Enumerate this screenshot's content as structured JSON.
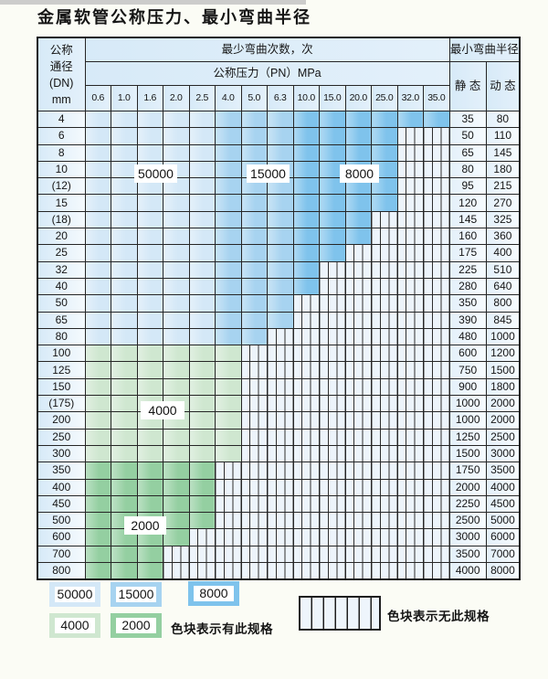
{
  "title": "金属软管公称压力、最小弯曲半径",
  "colors": {
    "50000": "#d4e8f7",
    "15000": "#a7d3f0",
    "8000": "#7fc3ec",
    "4000": "#cfe7d0",
    "2000": "#94cfa1"
  },
  "table": {
    "dn_header_lines": [
      "公称",
      "通径",
      "(DN)",
      "mm"
    ],
    "cycles_header": "最少弯曲次数，次",
    "pressure_header": "公称压力（PN）MPa",
    "radius_header": "最小弯曲半径",
    "static_label": "静 态",
    "dynamic_label": "动 态",
    "pressure_columns": [
      "0.6",
      "1.0",
      "1.6",
      "2.0",
      "2.5",
      "4.0",
      "5.0",
      "6.3",
      "10.0",
      "15.0",
      "20.0",
      "25.0",
      "32.0",
      "35.0"
    ],
    "rows": [
      {
        "dn": "4",
        "fill": [
          [
            "50000",
            5
          ],
          [
            "15000",
            3
          ],
          [
            "8000",
            6
          ]
        ],
        "static": "35",
        "dynamic": "80"
      },
      {
        "dn": "6",
        "fill": [
          [
            "50000",
            5
          ],
          [
            "15000",
            3
          ],
          [
            "8000",
            4
          ]
        ],
        "static": "50",
        "dynamic": "110"
      },
      {
        "dn": "8",
        "fill": [
          [
            "50000",
            5
          ],
          [
            "15000",
            3
          ],
          [
            "8000",
            4
          ]
        ],
        "static": "65",
        "dynamic": "145"
      },
      {
        "dn": "10",
        "fill": [
          [
            "50000",
            5
          ],
          [
            "15000",
            3
          ],
          [
            "8000",
            4
          ]
        ],
        "static": "80",
        "dynamic": "180"
      },
      {
        "dn": "(12)",
        "fill": [
          [
            "50000",
            5
          ],
          [
            "15000",
            3
          ],
          [
            "8000",
            4
          ]
        ],
        "static": "95",
        "dynamic": "215"
      },
      {
        "dn": "15",
        "fill": [
          [
            "50000",
            5
          ],
          [
            "15000",
            3
          ],
          [
            "8000",
            4
          ]
        ],
        "static": "120",
        "dynamic": "270"
      },
      {
        "dn": "(18)",
        "fill": [
          [
            "50000",
            5
          ],
          [
            "15000",
            3
          ],
          [
            "8000",
            3
          ]
        ],
        "static": "145",
        "dynamic": "325"
      },
      {
        "dn": "20",
        "fill": [
          [
            "50000",
            5
          ],
          [
            "15000",
            3
          ],
          [
            "8000",
            3
          ]
        ],
        "static": "160",
        "dynamic": "360"
      },
      {
        "dn": "25",
        "fill": [
          [
            "50000",
            5
          ],
          [
            "15000",
            3
          ],
          [
            "8000",
            2
          ]
        ],
        "static": "175",
        "dynamic": "400"
      },
      {
        "dn": "32",
        "fill": [
          [
            "50000",
            5
          ],
          [
            "15000",
            3
          ],
          [
            "8000",
            1
          ]
        ],
        "static": "225",
        "dynamic": "510"
      },
      {
        "dn": "40",
        "fill": [
          [
            "50000",
            5
          ],
          [
            "15000",
            3
          ],
          [
            "8000",
            1
          ]
        ],
        "static": "280",
        "dynamic": "640"
      },
      {
        "dn": "50",
        "fill": [
          [
            "50000",
            5
          ],
          [
            "15000",
            3
          ]
        ],
        "static": "350",
        "dynamic": "800"
      },
      {
        "dn": "65",
        "fill": [
          [
            "50000",
            5
          ],
          [
            "15000",
            3
          ]
        ],
        "static": "390",
        "dynamic": "845"
      },
      {
        "dn": "80",
        "fill": [
          [
            "50000",
            5
          ],
          [
            "15000",
            2
          ]
        ],
        "static": "480",
        "dynamic": "1000"
      },
      {
        "dn": "100",
        "fill": [
          [
            "4000",
            6
          ]
        ],
        "static": "600",
        "dynamic": "1200"
      },
      {
        "dn": "125",
        "fill": [
          [
            "4000",
            6
          ]
        ],
        "static": "750",
        "dynamic": "1500"
      },
      {
        "dn": "150",
        "fill": [
          [
            "4000",
            6
          ]
        ],
        "static": "900",
        "dynamic": "1800"
      },
      {
        "dn": "(175)",
        "fill": [
          [
            "4000",
            6
          ]
        ],
        "static": "1000",
        "dynamic": "2000"
      },
      {
        "dn": "200",
        "fill": [
          [
            "4000",
            6
          ]
        ],
        "static": "1000",
        "dynamic": "2000"
      },
      {
        "dn": "250",
        "fill": [
          [
            "4000",
            6
          ]
        ],
        "static": "1250",
        "dynamic": "2500"
      },
      {
        "dn": "300",
        "fill": [
          [
            "4000",
            6
          ]
        ],
        "static": "1500",
        "dynamic": "3000"
      },
      {
        "dn": "350",
        "fill": [
          [
            "2000",
            5
          ]
        ],
        "static": "1750",
        "dynamic": "3500"
      },
      {
        "dn": "400",
        "fill": [
          [
            "2000",
            5
          ]
        ],
        "static": "2000",
        "dynamic": "4000"
      },
      {
        "dn": "450",
        "fill": [
          [
            "2000",
            5
          ]
        ],
        "static": "2250",
        "dynamic": "4500"
      },
      {
        "dn": "500",
        "fill": [
          [
            "2000",
            5
          ]
        ],
        "static": "2500",
        "dynamic": "5000"
      },
      {
        "dn": "600",
        "fill": [
          [
            "2000",
            4
          ]
        ],
        "static": "3000",
        "dynamic": "6000"
      },
      {
        "dn": "700",
        "fill": [
          [
            "2000",
            3
          ]
        ],
        "static": "3500",
        "dynamic": "7000"
      },
      {
        "dn": "800",
        "fill": [
          [
            "2000",
            3
          ]
        ],
        "static": "4000",
        "dynamic": "8000"
      }
    ]
  },
  "overlay_labels": [
    {
      "label": "50000"
    },
    {
      "label": "15000"
    },
    {
      "label": "8000"
    },
    {
      "label": "4000"
    },
    {
      "label": "2000"
    }
  ],
  "legend": {
    "items": [
      {
        "label": "50000",
        "shade": "50000"
      },
      {
        "label": "15000",
        "shade": "15000"
      },
      {
        "label": "8000",
        "shade": "8000"
      },
      {
        "label": "4000",
        "shade": "4000"
      },
      {
        "label": "2000",
        "shade": "2000"
      }
    ],
    "has_spec_text": "色块表示有此规格",
    "no_spec_text": "色块表示无此规格"
  }
}
